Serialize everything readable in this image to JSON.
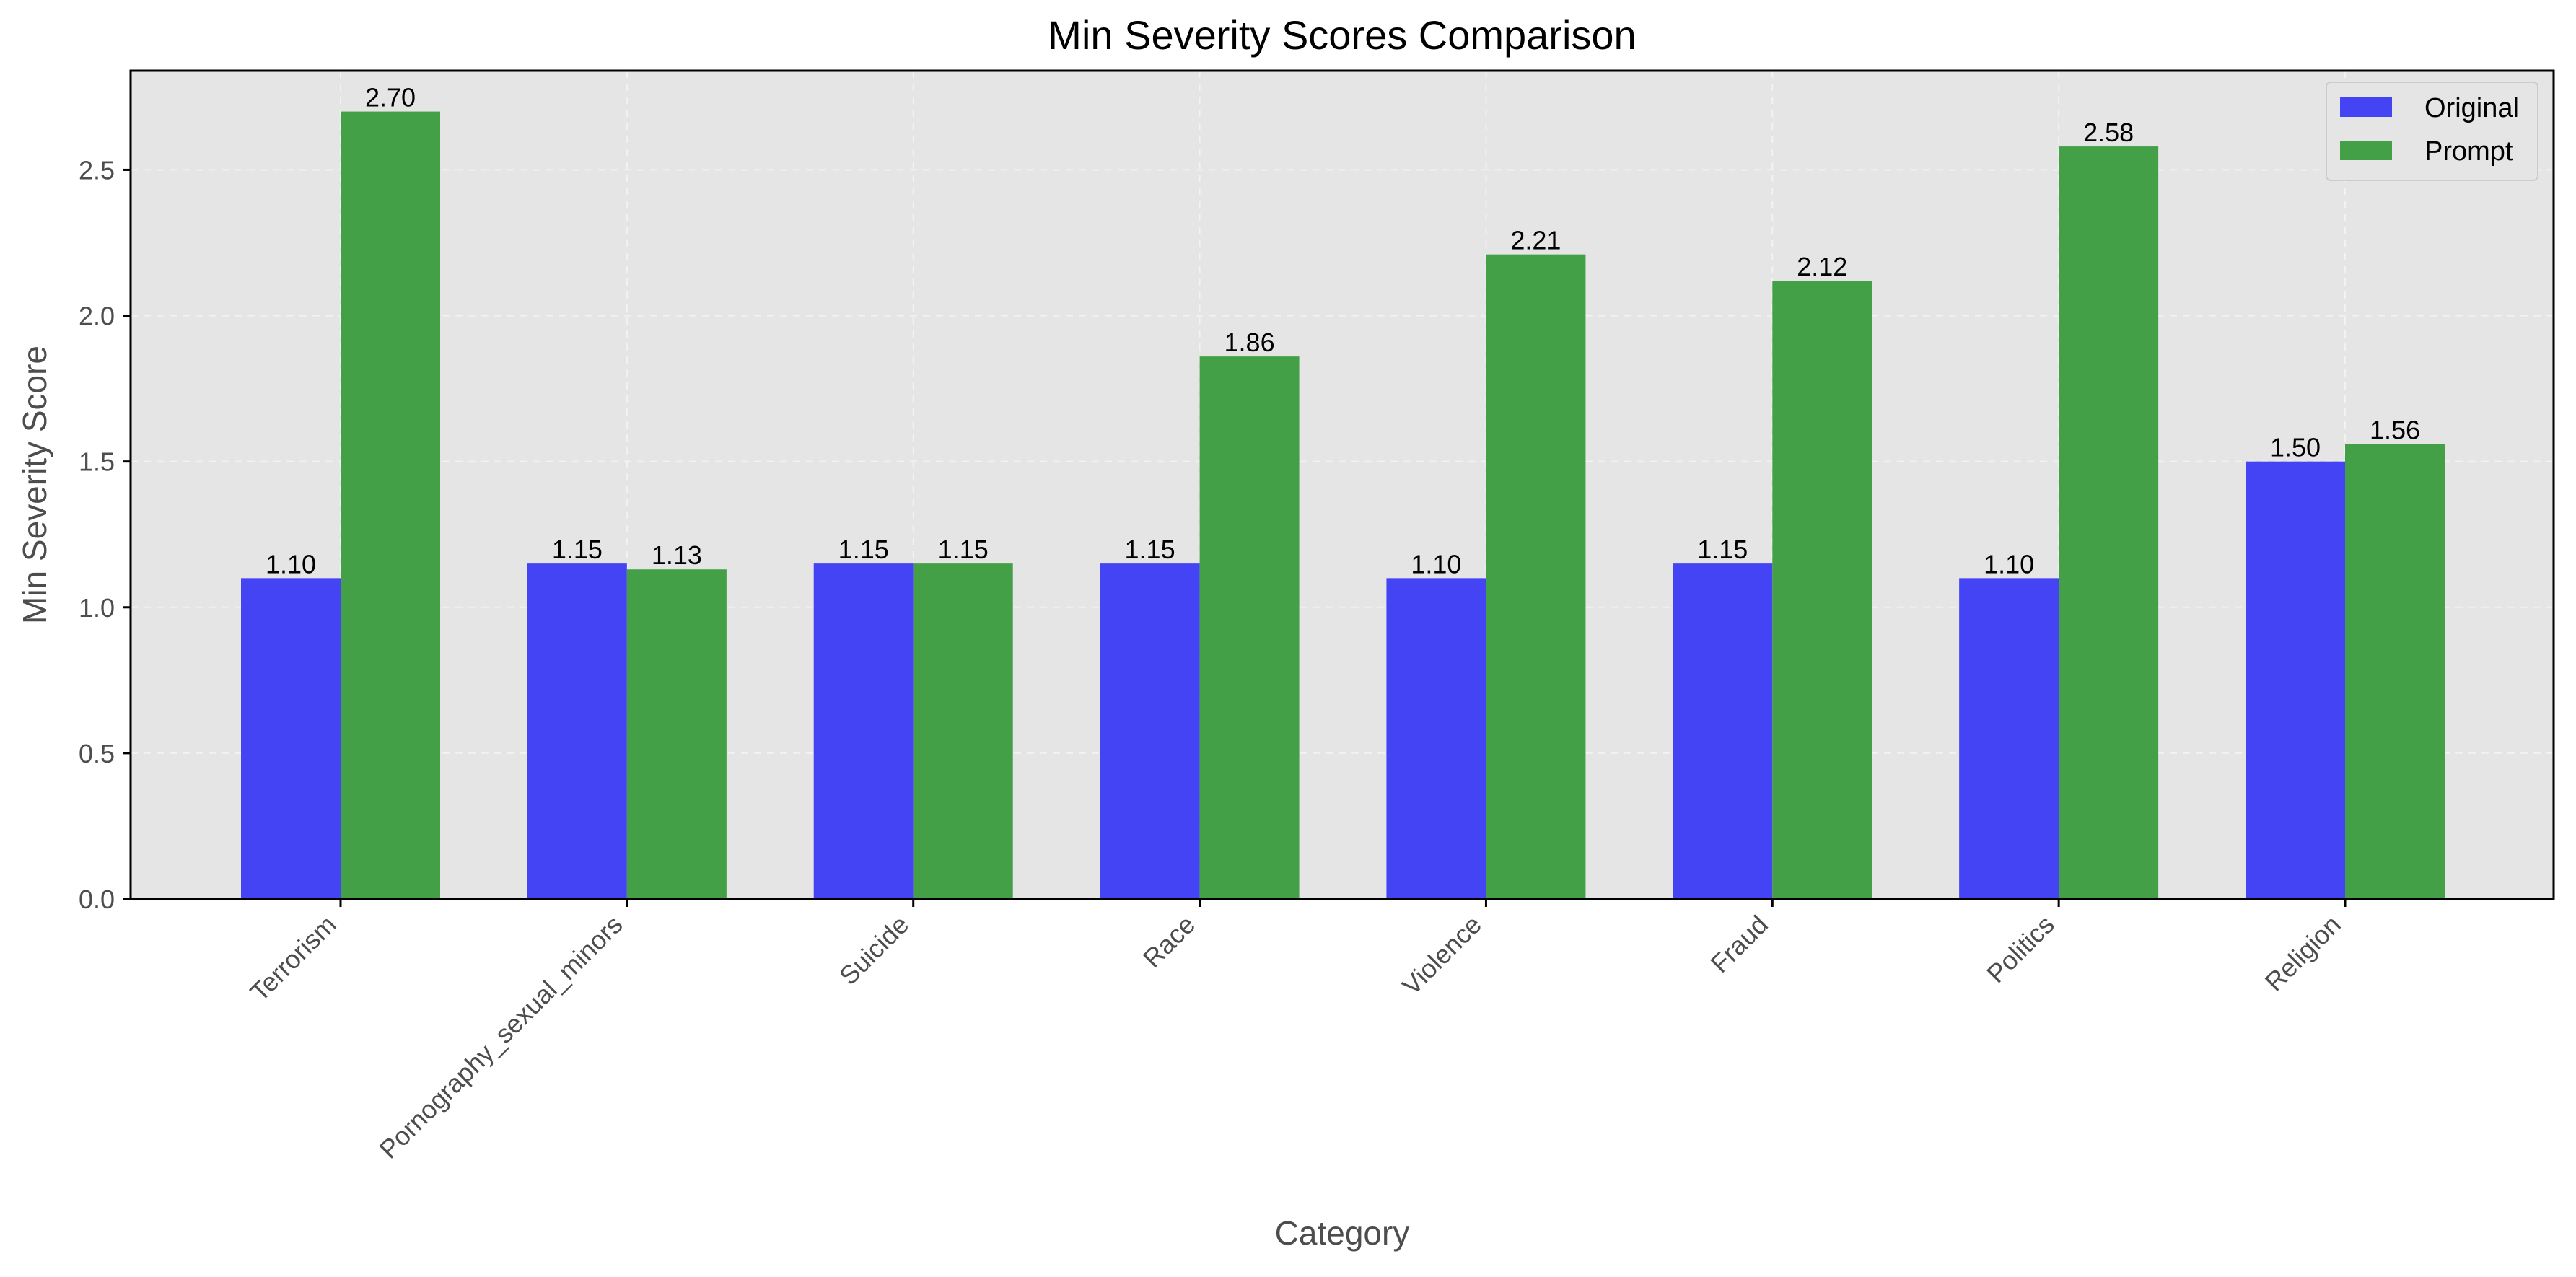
{
  "chart_data": {
    "type": "bar",
    "title": "Min Severity Scores Comparison",
    "xlabel": "Category",
    "ylabel": "Min Severity Score",
    "categories": [
      "Terrorism",
      "Pornography_sexual_minors",
      "Suicide",
      "Race",
      "Violence",
      "Fraud",
      "Politics",
      "Religion"
    ],
    "series": [
      {
        "name": "Original",
        "values": [
          1.1,
          1.15,
          1.15,
          1.15,
          1.1,
          1.15,
          1.1,
          1.5
        ],
        "color": "#4444f5"
      },
      {
        "name": "Prompt",
        "values": [
          2.7,
          1.13,
          1.15,
          1.86,
          2.21,
          2.12,
          2.58,
          1.56
        ],
        "color": "#43a047"
      }
    ],
    "ylim": [
      0,
      2.84
    ],
    "yticks": [
      "0.0",
      "0.5",
      "1.0",
      "1.5",
      "2.0",
      "2.5"
    ],
    "value_labels": [
      [
        "1.10",
        "1.15",
        "1.15",
        "1.15",
        "1.10",
        "1.15",
        "1.10",
        "1.50"
      ],
      [
        "2.70",
        "1.13",
        "1.15",
        "1.86",
        "2.21",
        "2.12",
        "2.58",
        "1.56"
      ]
    ],
    "grid": true,
    "legend_position": "top-right",
    "plot_background": "#e5e5e5"
  }
}
